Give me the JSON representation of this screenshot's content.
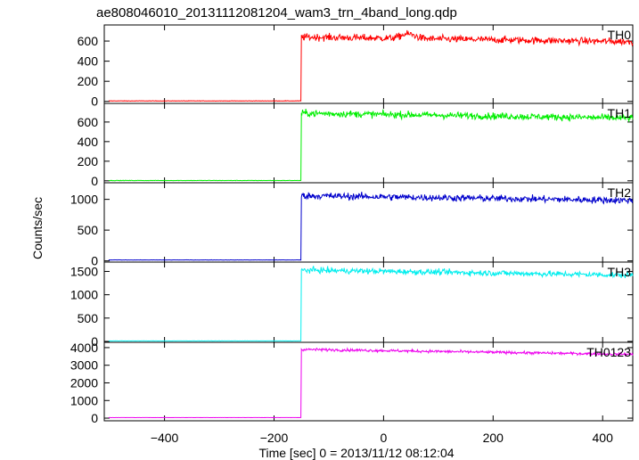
{
  "chart_data": {
    "type": "line",
    "title": "ae808046010_20131112081204_wam3_trn_4band_long.qdp",
    "xlabel": "Time [sec] 0 = 2013/11/12 08:12:04",
    "ylabel": "Counts/sec",
    "xlim": [
      -510,
      455
    ],
    "xticks": [
      -400,
      -200,
      0,
      200,
      400
    ],
    "xtick_labels": [
      "−400",
      "−200",
      "0",
      "200",
      "400"
    ],
    "grid": false,
    "step_time": -150,
    "panels": [
      {
        "name": "TH0",
        "color": "#ff0000",
        "ylim": [
          -20,
          760
        ],
        "yticks": [
          0,
          200,
          400,
          600
        ],
        "pre_level": 5,
        "post_level": 640,
        "noise": 25,
        "bumps": [
          {
            "x": 45,
            "height": 45,
            "width": 18
          }
        ]
      },
      {
        "name": "TH1",
        "color": "#00ee00",
        "ylim": [
          -20,
          790
        ],
        "yticks": [
          0,
          200,
          400,
          600
        ],
        "pre_level": 3,
        "post_level": 690,
        "noise": 25,
        "bumps": []
      },
      {
        "name": "TH2",
        "color": "#0000cc",
        "ylim": [
          -20,
          1270
        ],
        "yticks": [
          0,
          500,
          1000
        ],
        "pre_level": 15,
        "post_level": 1060,
        "noise": 40,
        "bumps": []
      },
      {
        "name": "TH3",
        "color": "#00eeee",
        "ylim": [
          -20,
          1700
        ],
        "yticks": [
          0,
          500,
          1000,
          1500
        ],
        "pre_level": 10,
        "post_level": 1530,
        "noise": 45,
        "bumps": []
      },
      {
        "name": "TH0123",
        "color": "#ee00ee",
        "ylim": [
          -150,
          4300
        ],
        "yticks": [
          0,
          1000,
          2000,
          3000,
          4000
        ],
        "pre_level": 30,
        "post_level": 3900,
        "noise": 55,
        "bumps": []
      }
    ]
  }
}
